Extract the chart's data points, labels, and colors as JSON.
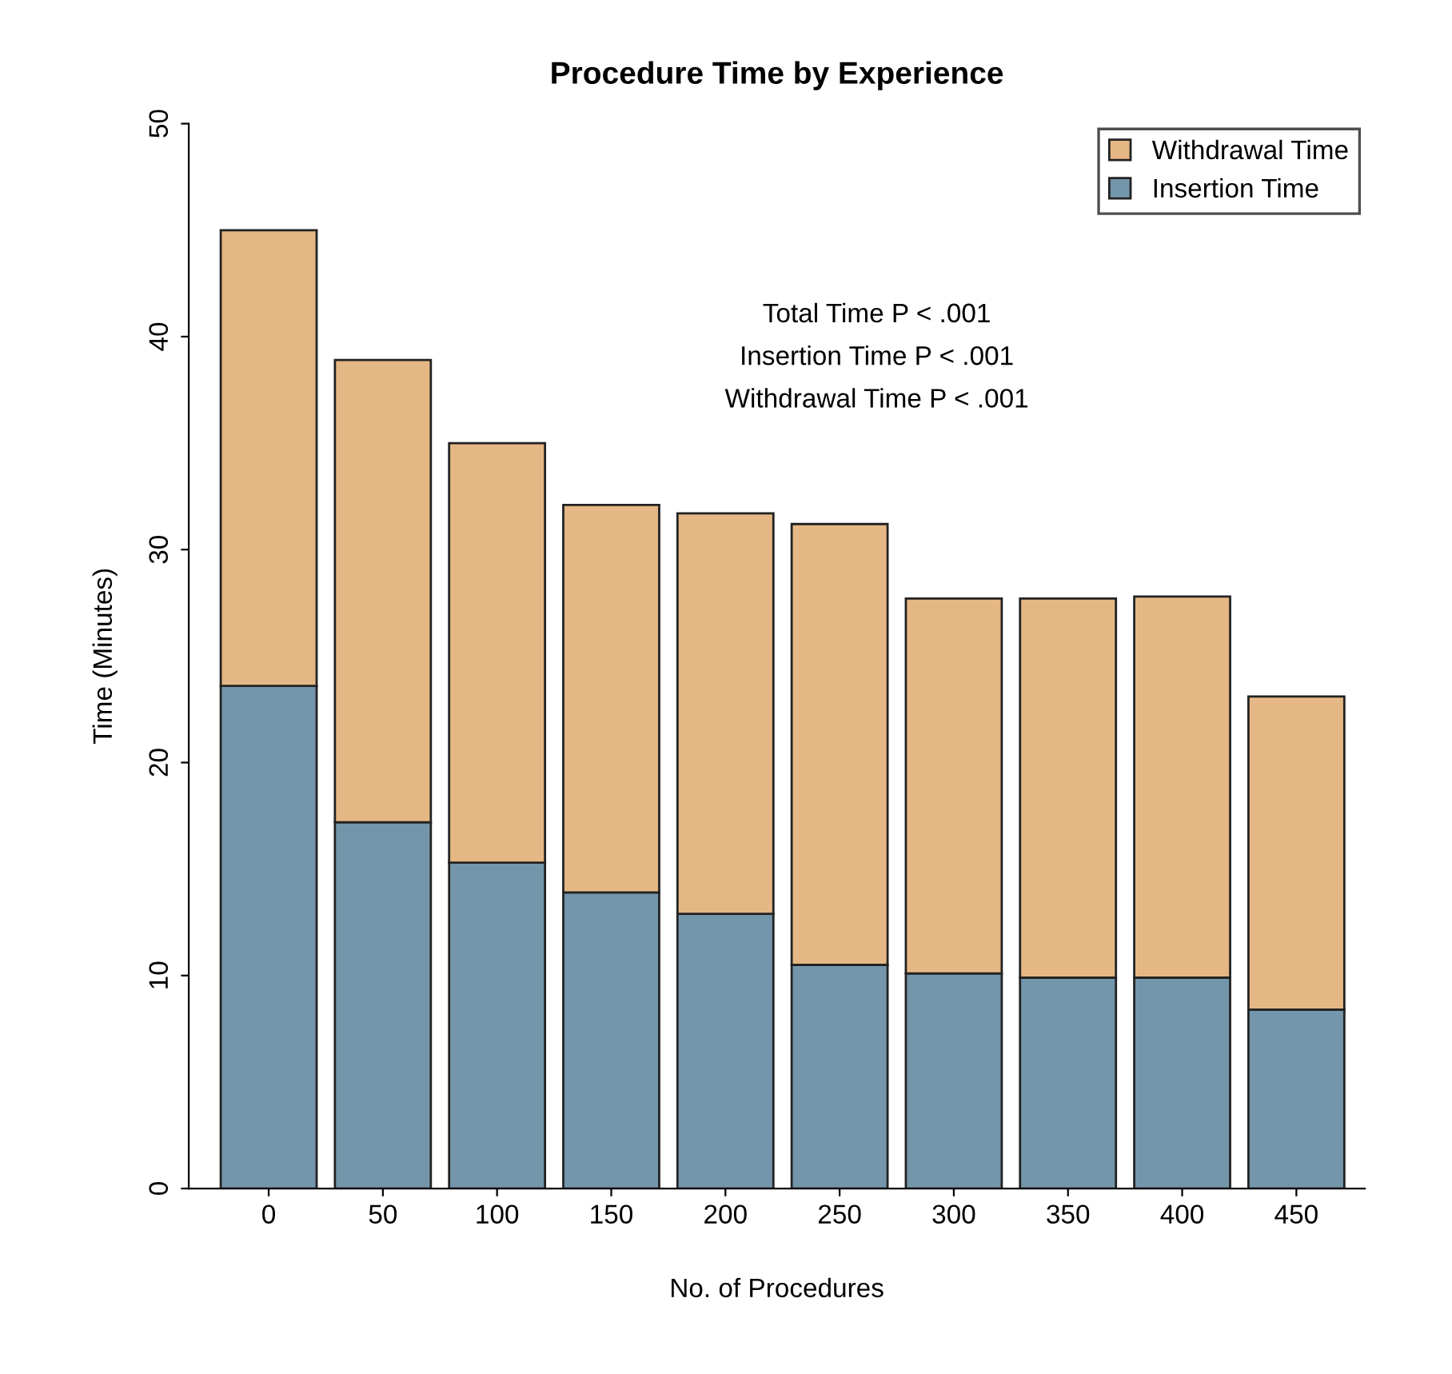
{
  "chart_data": {
    "type": "bar",
    "title": "Procedure Time by Experience",
    "xlabel": "No. of Procedures",
    "ylabel": "Time (Minutes)",
    "categories": [
      "0",
      "50",
      "100",
      "150",
      "200",
      "250",
      "300",
      "350",
      "400",
      "450"
    ],
    "stacked": true,
    "series": [
      {
        "name": "Insertion Time",
        "color": "#7496ab",
        "values": [
          23.6,
          17.2,
          15.3,
          13.9,
          12.9,
          10.5,
          10.1,
          9.9,
          9.9,
          8.4
        ]
      },
      {
        "name": "Withdrawal Time",
        "color": "#e5b784",
        "values": [
          21.4,
          21.7,
          19.7,
          18.2,
          18.8,
          20.7,
          17.6,
          17.8,
          17.9,
          14.7
        ]
      }
    ],
    "ylim": [
      0,
      50
    ],
    "yticks": [
      0,
      10,
      20,
      30,
      40,
      50
    ],
    "grid": false,
    "legend": "top right",
    "annotations": [
      "Total Time P < .001",
      "Insertion Time P < .001",
      "Withdrawal Time P < .001"
    ]
  }
}
